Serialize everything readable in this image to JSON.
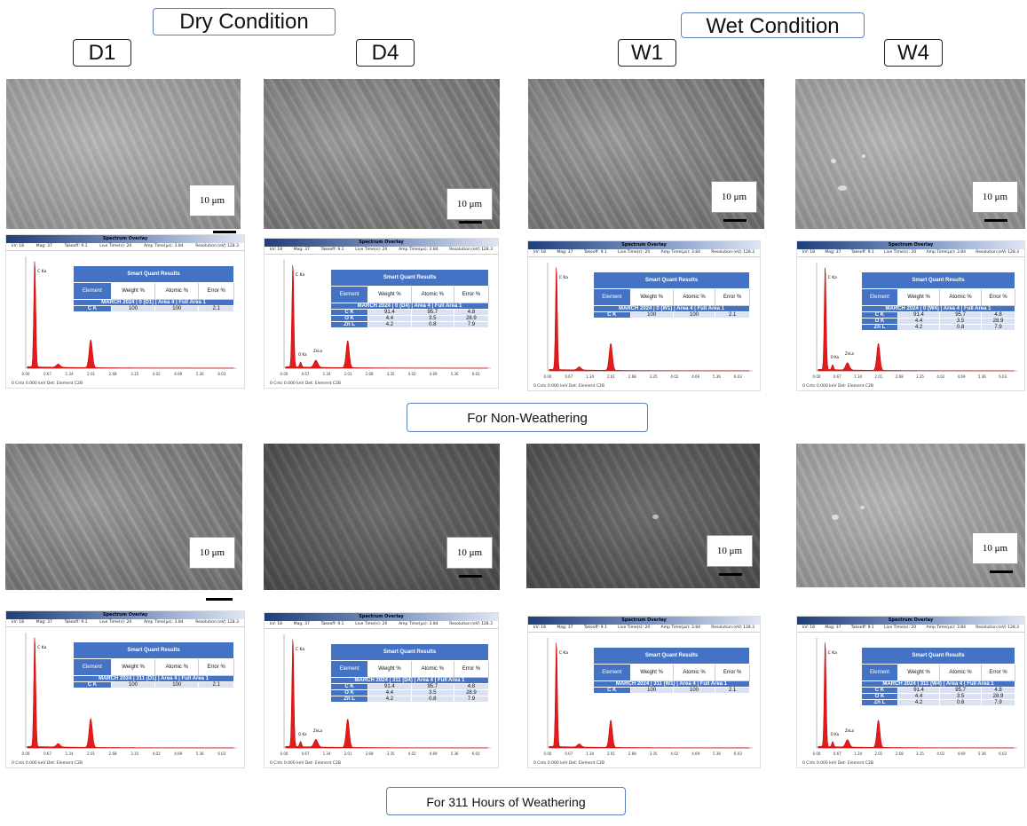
{
  "header": {
    "dry_label": "Dry Condition",
    "wet_label": "Wet Condition"
  },
  "samples": [
    "D1",
    "D4",
    "W1",
    "W4"
  ],
  "scale_label": "10 μm",
  "row_labels": {
    "non_weathering": "For Non-Weathering",
    "weathering": "For 311 Hours of Weathering"
  },
  "eds": {
    "panel_title": "Spectrum Overlay",
    "meta": [
      "kV: 18",
      "Mag: 37",
      "Takeoff: 9.1",
      "Live Time(s): 20",
      "Amp Time(μs): 3.84",
      "Resolution:(eV) 128.3"
    ],
    "footer": [
      "0 Cnts",
      "0.000 keV",
      "Det: Element C2B"
    ],
    "table_title": "Smart Quant Results",
    "columns": [
      "Element",
      "Weight %",
      "Atomic %",
      "Error %"
    ],
    "peak_labels": {
      "C": "C Ka",
      "O": "O Ka",
      "Zn": "ZnLa"
    },
    "panels": [
      {
        "sample": "D1",
        "band": "MARCH 2024 | 0 (D1) | Area 4 | Full Area 1",
        "rows": [
          [
            "C K",
            "100",
            "100",
            "2.1"
          ]
        ]
      },
      {
        "sample": "D4",
        "band": "MARCH 2024 | 0 (D4) | Area 4 | Full Area 1",
        "rows": [
          [
            "C K",
            "91.4",
            "95.7",
            "4.8"
          ],
          [
            "O K",
            "4.4",
            "3.5",
            "28.9"
          ],
          [
            "Zn L",
            "4.2",
            "0.8",
            "7.9"
          ]
        ]
      },
      {
        "sample": "W1",
        "band": "MARCH 2024 | 0 (W1) | Area 4 | Full Area 1",
        "rows": [
          [
            "C K",
            "100",
            "100",
            "2.1"
          ]
        ]
      },
      {
        "sample": "W4",
        "band": "MARCH 2024 | 0 (W4) | Area 4 | Full Area 1",
        "rows": [
          [
            "C K",
            "91.4",
            "95.7",
            "4.8"
          ],
          [
            "O K",
            "4.4",
            "3.5",
            "28.9"
          ],
          [
            "Zn L",
            "4.2",
            "0.8",
            "7.9"
          ]
        ]
      },
      {
        "sample": "D1",
        "band": "MARCH 2024 | 311 (D1) | Area 4 | Full Area 1",
        "rows": [
          [
            "C K",
            "100",
            "100",
            "2.1"
          ]
        ]
      },
      {
        "sample": "D4",
        "band": "MARCH 2024 | 311 (D4) | Area 4 | Full Area 1",
        "rows": [
          [
            "C K",
            "91.4",
            "95.7",
            "4.8"
          ],
          [
            "O K",
            "4.4",
            "3.5",
            "28.9"
          ],
          [
            "Zn L",
            "4.2",
            "0.8",
            "7.9"
          ]
        ]
      },
      {
        "sample": "W1",
        "band": "MARCH 2024 | 311 (W1) | Area 4 | Full Area 1",
        "rows": [
          [
            "C K",
            "100",
            "100",
            "2.1"
          ]
        ]
      },
      {
        "sample": "W4",
        "band": "MARCH 2024 | 311 (W4) | Area 4 | Full Area 1",
        "rows": [
          [
            "C K",
            "91.4",
            "95.7",
            "4.8"
          ],
          [
            "O K",
            "4.4",
            "3.5",
            "28.9"
          ],
          [
            "Zn L",
            "4.2",
            "0.8",
            "7.9"
          ]
        ]
      }
    ],
    "x_ticks": [
      "0.00",
      "0.67",
      "1.34",
      "2.01",
      "2.68",
      "3.35",
      "4.02",
      "4.69",
      "5.36",
      "6.03"
    ]
  }
}
